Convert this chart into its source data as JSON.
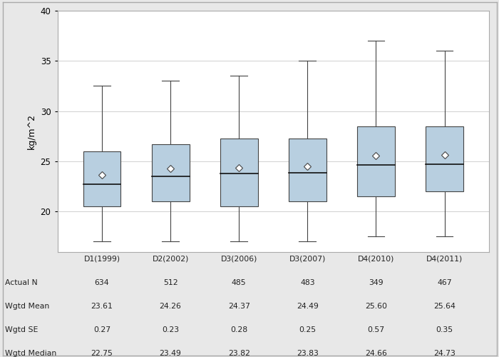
{
  "categories": [
    "D1(1999)",
    "D2(2002)",
    "D3(2006)",
    "D3(2007)",
    "D4(2010)",
    "D4(2011)"
  ],
  "boxes": [
    {
      "whislo": 17.0,
      "q1": 20.5,
      "med": 22.75,
      "q3": 26.0,
      "whishi": 32.5,
      "mean": 23.61
    },
    {
      "whislo": 17.0,
      "q1": 21.0,
      "med": 23.49,
      "q3": 26.7,
      "whishi": 33.0,
      "mean": 24.26
    },
    {
      "whislo": 17.0,
      "q1": 20.5,
      "med": 23.82,
      "q3": 27.3,
      "whishi": 33.5,
      "mean": 24.37
    },
    {
      "whislo": 17.0,
      "q1": 21.0,
      "med": 23.83,
      "q3": 27.3,
      "whishi": 35.0,
      "mean": 24.49
    },
    {
      "whislo": 17.5,
      "q1": 21.5,
      "med": 24.66,
      "q3": 28.5,
      "whishi": 37.0,
      "mean": 25.6
    },
    {
      "whislo": 17.5,
      "q1": 22.0,
      "med": 24.73,
      "q3": 28.5,
      "whishi": 36.0,
      "mean": 25.64
    }
  ],
  "actual_n": [
    634,
    512,
    485,
    483,
    349,
    467
  ],
  "wgtd_mean": [
    23.61,
    24.26,
    24.37,
    24.49,
    25.6,
    25.64
  ],
  "wgtd_se": [
    0.27,
    0.23,
    0.28,
    0.25,
    0.57,
    0.35
  ],
  "wgtd_median": [
    22.75,
    23.49,
    23.82,
    23.83,
    24.66,
    24.73
  ],
  "ylabel": "kg/m^2",
  "ylim": [
    16,
    40
  ],
  "yticks": [
    20,
    25,
    30,
    35,
    40
  ],
  "box_facecolor": "#b8cfe0",
  "box_edgecolor": "#444444",
  "median_color": "#111111",
  "whisker_color": "#444444",
  "cap_color": "#444444",
  "mean_marker_color": "white",
  "mean_marker_edge": "#444444",
  "background_color": "#e8e8e8",
  "plot_bg_color": "#ffffff",
  "grid_color": "#d0d0d0",
  "table_row_labels": [
    "Actual N",
    "Wgtd Mean",
    "Wgtd SE",
    "Wgtd Median"
  ],
  "figsize": [
    7.0,
    5.0
  ],
  "dpi": 100
}
